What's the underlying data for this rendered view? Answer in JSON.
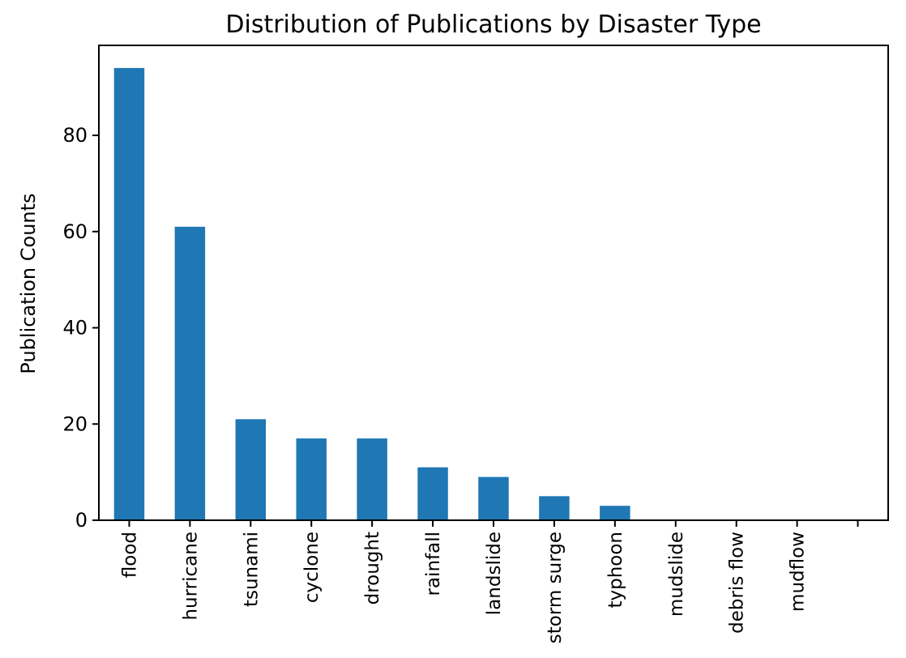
{
  "chart_data": {
    "type": "bar",
    "title": "Distribution of Publications by Disaster Type",
    "xlabel": "",
    "ylabel": "Publication Counts",
    "categories": [
      "flood",
      "hurricane",
      "tsunami",
      "cyclone",
      "drought",
      "rainfall",
      "landslide",
      "storm surge",
      "typhoon",
      "mudslide",
      "debris flow",
      "mudflow",
      ""
    ],
    "values": [
      94,
      61,
      21,
      17,
      17,
      11,
      9,
      5,
      3,
      0,
      0,
      0,
      0
    ],
    "ylim": [
      0,
      98.7
    ],
    "yticks": [
      0,
      20,
      40,
      60,
      80
    ],
    "grid": false,
    "bar_color": "#1f77b4"
  }
}
